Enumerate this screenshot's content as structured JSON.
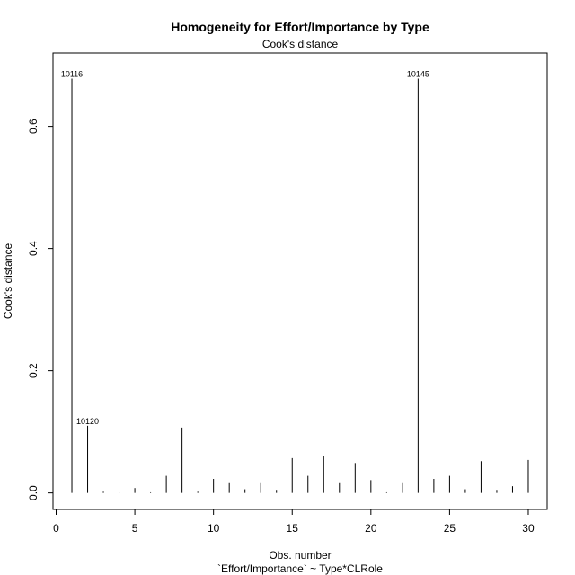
{
  "chart_data": {
    "type": "bar",
    "title": "Homogeneity for Effort/Importance by Type",
    "subtitle": "Cook's distance",
    "xlabel": "Obs. number",
    "xlabel2": "`Effort/Importance` ~ Type*CLRole",
    "ylabel": "Cook's distance",
    "xlim": [
      -0.2,
      31.2
    ],
    "ylim": [
      -0.027,
      0.72
    ],
    "xticks": [
      0,
      5,
      10,
      15,
      20,
      25,
      30
    ],
    "yticks": [
      0.0,
      0.2,
      0.4,
      0.6
    ],
    "ytick_labels": [
      "0.0",
      "0.2",
      "0.4",
      "0.6"
    ],
    "x": [
      1,
      2,
      3,
      4,
      5,
      6,
      7,
      8,
      9,
      10,
      11,
      12,
      13,
      14,
      15,
      16,
      17,
      18,
      19,
      20,
      21,
      22,
      23,
      24,
      25,
      26,
      27,
      28,
      29,
      30
    ],
    "values": [
      0.678,
      0.11,
      0.002,
      0.001,
      0.008,
      0.001,
      0.028,
      0.107,
      0.002,
      0.023,
      0.016,
      0.006,
      0.016,
      0.005,
      0.057,
      0.028,
      0.061,
      0.016,
      0.049,
      0.021,
      0.001,
      0.016,
      0.678,
      0.023,
      0.028,
      0.006,
      0.052,
      0.005,
      0.011,
      0.054
    ],
    "annotations": [
      {
        "x": 1,
        "text": "10116"
      },
      {
        "x": 2,
        "text": "10120"
      },
      {
        "x": 23,
        "text": "10145"
      }
    ]
  }
}
